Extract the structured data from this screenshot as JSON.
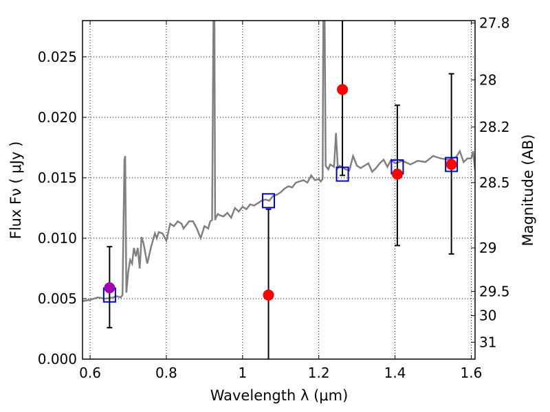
{
  "chart_data": {
    "type": "scatter",
    "title": "",
    "xlabel": "Wavelength  λ (μm)",
    "ylabel": "Flux  Fν  ( μJy )",
    "ylabel_right": "Magnitude (AB)",
    "xlim": [
      0.58,
      1.61
    ],
    "ylim": [
      0.0,
      0.028
    ],
    "grid": true,
    "grid_style": "dotted",
    "x_ticks": [
      0.6,
      0.8,
      1.0,
      1.2,
      1.4,
      1.6
    ],
    "x_tick_labels": [
      "0.6",
      "0.8",
      "1",
      "1.2",
      "1.4",
      "1.6"
    ],
    "y_ticks": [
      0.0,
      0.005,
      0.01,
      0.015,
      0.02,
      0.025
    ],
    "y_tick_labels": [
      "0.000",
      "0.005",
      "0.010",
      "0.015",
      "0.020",
      "0.025"
    ],
    "right_ticks": [
      {
        "label": "27.8",
        "flux": 0.0278
      },
      {
        "label": "28",
        "flux": 0.0231
      },
      {
        "label": "28.2",
        "flux": 0.0192
      },
      {
        "label": "28.5",
        "flux": 0.0146
      },
      {
        "label": "29",
        "flux": 0.0092
      },
      {
        "label": "29.5",
        "flux": 0.0056
      },
      {
        "label": "30",
        "flux": 0.0036
      },
      {
        "label": "31",
        "flux": 0.0014
      }
    ],
    "colors": {
      "spectrum": "#808080",
      "observed": "#ff0000",
      "observed_first": "#a000b0",
      "model": "#0000cc",
      "errorbar": "#000000"
    },
    "series": [
      {
        "kind": "line",
        "x": [
          0.58,
          0.6,
          0.62,
          0.64,
          0.66,
          0.67,
          0.68,
          0.685,
          0.69,
          0.692,
          0.695,
          0.7,
          0.705,
          0.71,
          0.715,
          0.72,
          0.725,
          0.73,
          0.735,
          0.74,
          0.75,
          0.76,
          0.77,
          0.775,
          0.78,
          0.79,
          0.8,
          0.81,
          0.82,
          0.83,
          0.84,
          0.845,
          0.85,
          0.86,
          0.87,
          0.88,
          0.89,
          0.9,
          0.91,
          0.915,
          0.92,
          0.924,
          0.926,
          0.928,
          0.93,
          0.935,
          0.94,
          0.95,
          0.96,
          0.97,
          0.98,
          0.99,
          1.0,
          1.01,
          1.02,
          1.03,
          1.04,
          1.05,
          1.06,
          1.07,
          1.08,
          1.09,
          1.1,
          1.11,
          1.12,
          1.13,
          1.14,
          1.15,
          1.16,
          1.17,
          1.18,
          1.19,
          1.2,
          1.205,
          1.21,
          1.212,
          1.215,
          1.218,
          1.22,
          1.225,
          1.23,
          1.24,
          1.245,
          1.25,
          1.255,
          1.26,
          1.27,
          1.28,
          1.29,
          1.3,
          1.31,
          1.32,
          1.33,
          1.34,
          1.35,
          1.36,
          1.37,
          1.38,
          1.39,
          1.4,
          1.42,
          1.44,
          1.46,
          1.48,
          1.5,
          1.52,
          1.54,
          1.56,
          1.57,
          1.58,
          1.59,
          1.6,
          1.605,
          1.61
        ],
        "y": [
          0.0048,
          0.0049,
          0.0051,
          0.005,
          0.0051,
          0.0052,
          0.0051,
          0.0053,
          0.0165,
          0.0168,
          0.0055,
          0.0072,
          0.0082,
          0.0079,
          0.0092,
          0.0085,
          0.0092,
          0.0075,
          0.0101,
          0.0096,
          0.0079,
          0.0093,
          0.0104,
          0.01,
          0.0105,
          0.0104,
          0.0098,
          0.0112,
          0.011,
          0.0114,
          0.0112,
          0.0108,
          0.011,
          0.0114,
          0.0114,
          0.0108,
          0.01,
          0.011,
          0.0108,
          0.0114,
          0.0115,
          0.03,
          0.03,
          0.0115,
          0.0117,
          0.012,
          0.0119,
          0.0118,
          0.0121,
          0.0117,
          0.0125,
          0.0122,
          0.0126,
          0.0124,
          0.0128,
          0.0127,
          0.0129,
          0.0131,
          0.0132,
          0.0131,
          0.0135,
          0.0136,
          0.0138,
          0.0141,
          0.0143,
          0.0142,
          0.0146,
          0.0147,
          0.0148,
          0.0146,
          0.0152,
          0.0148,
          0.0149,
          0.0147,
          0.0149,
          0.03,
          0.03,
          0.016,
          0.0159,
          0.0157,
          0.0161,
          0.0159,
          0.0187,
          0.0158,
          0.016,
          0.0159,
          0.0157,
          0.0156,
          0.0168,
          0.016,
          0.0158,
          0.016,
          0.0162,
          0.0155,
          0.0158,
          0.0162,
          0.0165,
          0.0159,
          0.0165,
          0.0162,
          0.0164,
          0.0161,
          0.0164,
          0.0163,
          0.0168,
          0.0166,
          0.0165,
          0.0167,
          0.0172,
          0.0163,
          0.0166,
          0.0166,
          0.0172,
          0.0156
        ]
      },
      {
        "kind": "points",
        "marker": "circle",
        "points": [
          {
            "x": 0.651,
            "y": 0.0059,
            "err_low": 0.0026,
            "err_high": 0.0093
          },
          {
            "x": 1.068,
            "y": 0.0053,
            "err_low": 0.0,
            "err_high": 0.0124
          },
          {
            "x": 1.262,
            "y": 0.0223,
            "err_low": 0.0152,
            "err_high": 0.03
          },
          {
            "x": 1.406,
            "y": 0.0153,
            "err_low": 0.0094,
            "err_high": 0.021
          },
          {
            "x": 1.548,
            "y": 0.0161,
            "err_low": 0.0087,
            "err_high": 0.0236
          }
        ]
      },
      {
        "kind": "points",
        "marker": "square",
        "points": [
          {
            "x": 0.651,
            "y": 0.0053
          },
          {
            "x": 1.068,
            "y": 0.0131
          },
          {
            "x": 1.262,
            "y": 0.0153
          },
          {
            "x": 1.406,
            "y": 0.0159
          },
          {
            "x": 1.548,
            "y": 0.0161
          }
        ]
      }
    ]
  }
}
